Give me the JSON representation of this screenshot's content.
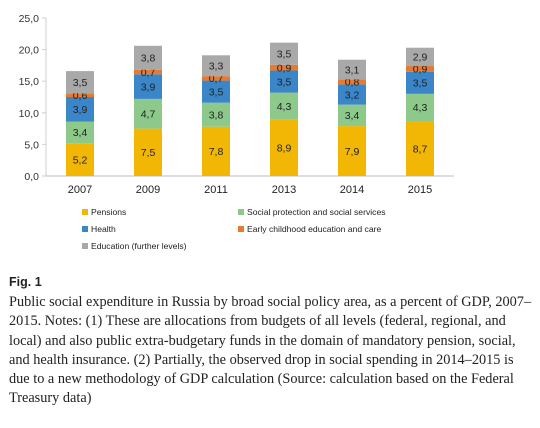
{
  "chart_data": {
    "type": "bar",
    "stacked": true,
    "categories": [
      "2007",
      "2009",
      "2011",
      "2013",
      "2014",
      "2015"
    ],
    "series": [
      {
        "name": "Pensions",
        "color": "#f2b705",
        "values": [
          5.2,
          7.5,
          7.8,
          8.9,
          7.9,
          8.7
        ]
      },
      {
        "name": "Social protection and social services",
        "color": "#8cc98a",
        "values": [
          3.4,
          4.7,
          3.8,
          4.3,
          3.4,
          4.3
        ]
      },
      {
        "name": "Health",
        "color": "#3a86c8",
        "values": [
          3.9,
          3.9,
          3.5,
          3.5,
          3.2,
          3.5
        ]
      },
      {
        "name": "Early childhood education and care",
        "color": "#e57a30",
        "values": [
          0.6,
          0.7,
          0.7,
          0.9,
          0.8,
          0.9
        ]
      },
      {
        "name": "Education (further levels)",
        "color": "#a9a9a9",
        "values": [
          3.5,
          3.8,
          3.3,
          3.5,
          3.1,
          2.9
        ]
      }
    ],
    "value_labels": [
      [
        "5,2",
        "7,5",
        "7,8",
        "8,9",
        "7,9",
        "8,7"
      ],
      [
        "3,4",
        "4,7",
        "3,8",
        "4,3",
        "3,4",
        "4,3"
      ],
      [
        "3,9",
        "3,9",
        "3,5",
        "3,5",
        "3,2",
        "3,5"
      ],
      [
        "0,6",
        "0,7",
        "0,7",
        "0,9",
        "0,8",
        "0,9"
      ],
      [
        "3,5",
        "3,8",
        "3,3",
        "3,5",
        "3,1",
        "2,9"
      ]
    ],
    "yticks": [
      0,
      5,
      10,
      15,
      20,
      25
    ],
    "ytick_labels": [
      "0,0",
      "5,0",
      "10,0",
      "15,0",
      "20,0",
      "25,0"
    ],
    "ylim": [
      0,
      25
    ],
    "grid": false,
    "legend_position": "bottom",
    "title": "",
    "xlabel": "",
    "ylabel": ""
  },
  "figure": {
    "label": "Fig. 1",
    "caption": "Public social expenditure in Russia by broad social policy area, as a percent of GDP, 2007–2015. Notes: (1) These are allocations from budgets of all levels (federal, regional, and local) and also public extra-budgetary funds in the domain of mandatory pension, social, and health insurance. (2) Partially, the observed drop in social spending in 2014–2015 is due to a new methodology of GDP calculation (Source: calculation based on the Federal Treasury data)"
  }
}
